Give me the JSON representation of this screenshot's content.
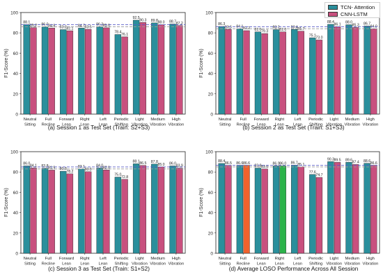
{
  "legend": {
    "items": [
      {
        "label": "TCN- Attention",
        "color": "#2a8f9c"
      },
      {
        "label": "CNN-LSTM",
        "color": "#c8507e"
      }
    ]
  },
  "chart_data": [
    {
      "type": "bar",
      "caption": "(a) Session 1 as Test Set (Train: S2+S3)",
      "ylabel": "F1-Score (%)",
      "ylim": [
        0,
        100
      ],
      "yticks": [
        0,
        20,
        40,
        60,
        80,
        100
      ],
      "categories": [
        [
          "Neutral",
          "Sitting"
        ],
        [
          "Full",
          "Recline"
        ],
        [
          "Forward",
          "Lean"
        ],
        [
          "Right",
          "Lean"
        ],
        [
          "Left",
          "Lean"
        ],
        [
          "Periodic",
          "Shifting"
        ],
        [
          "Light",
          "Vibration"
        ],
        [
          "Medium",
          "Vibration"
        ],
        [
          "High",
          "Vibration"
        ]
      ],
      "series": [
        {
          "name": "TCN- Attention",
          "values": [
            88.1,
            86.0,
            83.2,
            84.7,
            86.2,
            78.4,
            92.5,
            89.8,
            88.7
          ]
        },
        {
          "name": "CNN-LSTM",
          "values": [
            85.2,
            84.8,
            82.1,
            83.5,
            85.0,
            76.1,
            90.3,
            88.0,
            87.2
          ]
        }
      ],
      "reference_lines": [
        88.0,
        86.0
      ]
    },
    {
      "type": "bar",
      "caption": "(b) Session 2 as Test Set (Train: S1+S3)",
      "ylabel": "F1-Score (%)",
      "ylim": [
        0,
        100
      ],
      "yticks": [
        0,
        20,
        40,
        60,
        80,
        100
      ],
      "categories": [
        [
          "Neutral",
          "Sitting"
        ],
        [
          "Full",
          "Recline"
        ],
        [
          "Forward",
          "Lean"
        ],
        [
          "Right",
          "Lean"
        ],
        [
          "Left",
          "Lean"
        ],
        [
          "Periodic",
          "Shifting"
        ],
        [
          "Light",
          "Vibration"
        ],
        [
          "Medium",
          "Vibration"
        ],
        [
          "High",
          "Vibration"
        ]
      ],
      "series": [
        {
          "name": "TCN- Attention",
          "values": [
            86.3,
            84.1,
            81.0,
            83.2,
            83.4,
            75.1,
            88.4,
            88.0,
            86.7
          ]
        },
        {
          "name": "CNN-LSTM",
          "values": [
            83.5,
            82.2,
            79.3,
            81.0,
            81.7,
            73.0,
            86.1,
            85.3,
            84.0
          ]
        }
      ],
      "reference_lines": [
        86.0,
        84.0
      ]
    },
    {
      "type": "bar",
      "caption": "(c) Session 3 as Test Set (Train: S1+S2)",
      "ylabel": "F1-Score (%)",
      "ylim": [
        0,
        100
      ],
      "yticks": [
        0,
        20,
        40,
        60,
        80,
        100
      ],
      "categories": [
        [
          "Neutral",
          "Sitting"
        ],
        [
          "Full",
          "Recline"
        ],
        [
          "Forward",
          "Lean"
        ],
        [
          "Right",
          "Lean"
        ],
        [
          "Left",
          "Lean"
        ],
        [
          "Periodic",
          "Shifting"
        ],
        [
          "Light",
          "Vibration"
        ],
        [
          "Medium",
          "Vibration"
        ],
        [
          "High",
          "Vibration"
        ]
      ],
      "series": [
        {
          "name": "TCN- Attention",
          "values": [
            86.0,
            83.8,
            80.8,
            83.1,
            84.0,
            75.0,
            88.1,
            87.8,
            86.0
          ]
        },
        {
          "name": "CNN-LSTM",
          "values": [
            84.1,
            81.9,
            78.2,
            80.3,
            82.0,
            72.8,
            86.5,
            85.0,
            83.9
          ]
        }
      ],
      "reference_lines": [
        85.0,
        83.0
      ]
    },
    {
      "type": "bar",
      "caption": "(d) Average LOSO Performance Across All Session",
      "ylabel": "F1-Score (%)",
      "ylim": [
        0,
        100
      ],
      "yticks": [
        0,
        20,
        40,
        60,
        80,
        100
      ],
      "categories": [
        [
          "Neutral",
          "Sitting"
        ],
        [
          "Full",
          "Recline"
        ],
        [
          "Forward",
          "Lean"
        ],
        [
          "Right",
          "Lean"
        ],
        [
          "Left",
          "Lean"
        ],
        [
          "Periodic",
          "Shifting"
        ],
        [
          "Light",
          "Vibration"
        ],
        [
          "Medium",
          "Vibration"
        ],
        [
          "High",
          "Vibration"
        ]
      ],
      "series": [
        {
          "name": "TCN- Attention",
          "values": [
            88.4,
            86.6,
            83.9,
            86.0,
            86.7,
            77.6,
            90.3,
            89.6,
            88.6
          ]
        },
        {
          "name": "CNN-LSTM",
          "values": [
            86.5,
            86.6,
            83.0,
            86.0,
            85.1,
            74.7,
            89.5,
            87.4,
            86.6
          ]
        }
      ],
      "highlight_colors": {
        "1": "#f0622d",
        "3": "#2bb34a"
      },
      "reference_lines": [
        86.5,
        85.0
      ]
    }
  ]
}
